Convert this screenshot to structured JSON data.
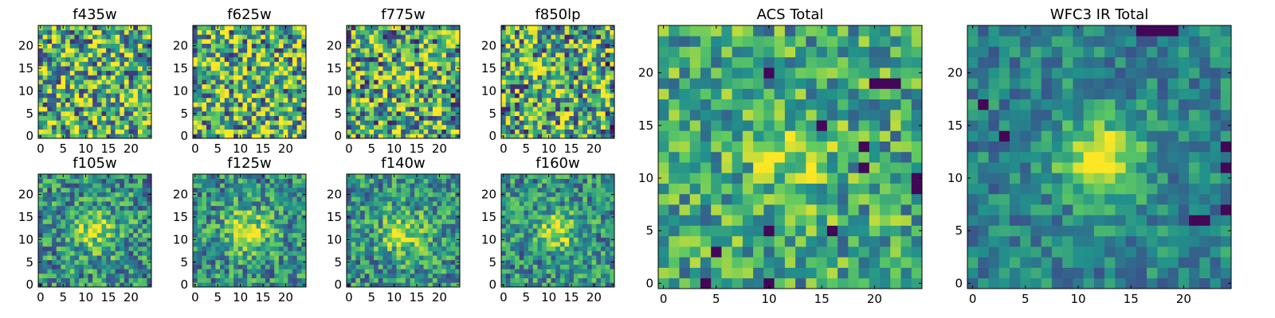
{
  "figure": {
    "colormap": "viridis",
    "colors": {
      "viridis_stops": [
        "#440154",
        "#3b528b",
        "#21918c",
        "#5ec962",
        "#fde725"
      ],
      "axis": "#000000",
      "background": "#ffffff"
    }
  },
  "chart_data": [
    {
      "type": "heatmap",
      "title": "f435w",
      "grid_size": 25,
      "xticks": [
        "0",
        "5",
        "10",
        "15",
        "20"
      ],
      "yticks": [
        "0",
        "5",
        "10",
        "15",
        "20"
      ],
      "xlim": [
        -0.5,
        24.5
      ],
      "ylim": [
        -0.5,
        24.5
      ],
      "source_center": null,
      "source_amplitude": 0.0,
      "source_sigma": 3.5,
      "noise_level": 0.5,
      "background": 0.65,
      "seed": 11,
      "dark_pixels": []
    },
    {
      "type": "heatmap",
      "title": "f625w",
      "grid_size": 25,
      "xticks": [
        "0",
        "5",
        "10",
        "15",
        "20"
      ],
      "yticks": [
        "0",
        "5",
        "10",
        "15",
        "20"
      ],
      "xlim": [
        -0.5,
        24.5
      ],
      "ylim": [
        -0.5,
        24.5
      ],
      "source_center": null,
      "source_amplitude": 0.0,
      "source_sigma": 3.5,
      "noise_level": 0.5,
      "background": 0.65,
      "seed": 23,
      "dark_pixels": []
    },
    {
      "type": "heatmap",
      "title": "f775w",
      "grid_size": 25,
      "xticks": [
        "0",
        "5",
        "10",
        "15",
        "20"
      ],
      "yticks": [
        "0",
        "5",
        "10",
        "15",
        "20"
      ],
      "xlim": [
        -0.5,
        24.5
      ],
      "ylim": [
        -0.5,
        24.5
      ],
      "source_center": [
        12,
        12
      ],
      "source_amplitude": 0.15,
      "source_sigma": 2.5,
      "noise_level": 0.5,
      "background": 0.6,
      "seed": 37,
      "dark_pixels": [
        [
          12,
          24
        ],
        [
          23,
          9
        ]
      ]
    },
    {
      "type": "heatmap",
      "title": "f850lp",
      "grid_size": 25,
      "xticks": [
        "0",
        "5",
        "10",
        "15",
        "20"
      ],
      "yticks": [
        "0",
        "5",
        "10",
        "15",
        "20"
      ],
      "xlim": [
        -0.5,
        24.5
      ],
      "ylim": [
        -0.5,
        24.5
      ],
      "source_center": [
        12,
        12
      ],
      "source_amplitude": 0.15,
      "source_sigma": 2.5,
      "noise_level": 0.5,
      "background": 0.6,
      "seed": 41,
      "dark_pixels": [
        [
          23,
          16
        ],
        [
          24,
          2
        ]
      ]
    },
    {
      "type": "heatmap",
      "title": "f105w",
      "grid_size": 25,
      "xticks": [
        "0",
        "5",
        "10",
        "15",
        "20"
      ],
      "yticks": [
        "0",
        "5",
        "10",
        "15",
        "20"
      ],
      "xlim": [
        -0.5,
        24.5
      ],
      "ylim": [
        -0.5,
        24.5
      ],
      "source_center": [
        12,
        12
      ],
      "source_amplitude": 0.35,
      "source_sigma": 3.5,
      "noise_level": 0.32,
      "background": 0.5,
      "seed": 53,
      "dark_pixels": []
    },
    {
      "type": "heatmap",
      "title": "f125w",
      "grid_size": 25,
      "xticks": [
        "0",
        "5",
        "10",
        "15",
        "20"
      ],
      "yticks": [
        "0",
        "5",
        "10",
        "15",
        "20"
      ],
      "xlim": [
        -0.5,
        24.5
      ],
      "ylim": [
        -0.5,
        24.5
      ],
      "source_center": [
        12,
        12
      ],
      "source_amplitude": 0.4,
      "source_sigma": 3.5,
      "noise_level": 0.3,
      "background": 0.5,
      "seed": 67,
      "dark_pixels": []
    },
    {
      "type": "heatmap",
      "title": "f140w",
      "grid_size": 25,
      "xticks": [
        "0",
        "5",
        "10",
        "15",
        "20"
      ],
      "yticks": [
        "0",
        "5",
        "10",
        "15",
        "20"
      ],
      "xlim": [
        -0.5,
        24.5
      ],
      "ylim": [
        -0.5,
        24.5
      ],
      "source_center": [
        12,
        11
      ],
      "source_amplitude": 0.4,
      "source_sigma": 3.5,
      "noise_level": 0.3,
      "background": 0.5,
      "seed": 79,
      "dark_pixels": []
    },
    {
      "type": "heatmap",
      "title": "f160w",
      "grid_size": 25,
      "xticks": [
        "0",
        "5",
        "10",
        "15",
        "20"
      ],
      "yticks": [
        "0",
        "5",
        "10",
        "15",
        "20"
      ],
      "xlim": [
        -0.5,
        24.5
      ],
      "ylim": [
        -0.5,
        24.5
      ],
      "source_center": [
        12,
        12
      ],
      "source_amplitude": 0.4,
      "source_sigma": 3.0,
      "noise_level": 0.3,
      "background": 0.5,
      "seed": 83,
      "dark_pixels": []
    },
    {
      "type": "heatmap",
      "title": "ACS Total",
      "grid_size": 25,
      "xticks": [
        "0",
        "5",
        "10",
        "15",
        "20"
      ],
      "yticks": [
        "0",
        "5",
        "10",
        "15",
        "20"
      ],
      "xlim": [
        -0.5,
        24.5
      ],
      "ylim": [
        -0.5,
        24.5
      ],
      "source_center": [
        12,
        12
      ],
      "source_amplitude": 0.22,
      "source_sigma": 3.0,
      "noise_level": 0.3,
      "background": 0.6,
      "seed": 97,
      "dark_pixels": [
        [
          10,
          20
        ],
        [
          20,
          19
        ],
        [
          21,
          19
        ],
        [
          22,
          19
        ],
        [
          15,
          15
        ],
        [
          19,
          13
        ],
        [
          19,
          11
        ],
        [
          24,
          10
        ],
        [
          24,
          9
        ],
        [
          10,
          5
        ],
        [
          16,
          5
        ],
        [
          5,
          3
        ],
        [
          4,
          0
        ],
        [
          10,
          0
        ]
      ]
    },
    {
      "type": "heatmap",
      "title": "WFC3 IR Total",
      "grid_size": 25,
      "xticks": [
        "0",
        "5",
        "10",
        "15",
        "20"
      ],
      "yticks": [
        "0",
        "5",
        "10",
        "15",
        "20"
      ],
      "xlim": [
        -0.5,
        24.5
      ],
      "ylim": [
        -0.5,
        24.5
      ],
      "source_center": [
        12,
        12
      ],
      "source_amplitude": 0.5,
      "source_sigma": 2.8,
      "noise_level": 0.2,
      "background": 0.45,
      "seed": 101,
      "dark_pixels": [
        [
          16,
          24
        ],
        [
          17,
          24
        ],
        [
          18,
          24
        ],
        [
          19,
          24
        ],
        [
          1,
          17
        ],
        [
          3,
          14
        ],
        [
          24,
          13
        ],
        [
          24,
          11
        ],
        [
          24,
          7
        ],
        [
          21,
          6
        ],
        [
          22,
          6
        ]
      ]
    }
  ]
}
